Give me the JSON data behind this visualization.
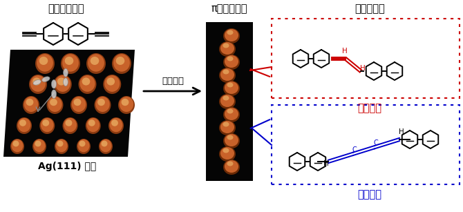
{
  "title_left": "末端アルキン",
  "title_middle": "π骨格の合成",
  "title_right": "化学的同定",
  "label_bottom_left": "Ag(111) 基板",
  "label_arrow": "表面合成",
  "label_blue": "クムレン",
  "label_red": "エンイン",
  "bg_color": "#ffffff",
  "blue_color": "#0000cc",
  "red_color": "#cc0000",
  "black_color": "#000000",
  "stm_bg": "#050505",
  "stm_orange": "#C8622A",
  "stm_highlight": "#E8AA60",
  "stm_dark_edge": "#1a0800"
}
